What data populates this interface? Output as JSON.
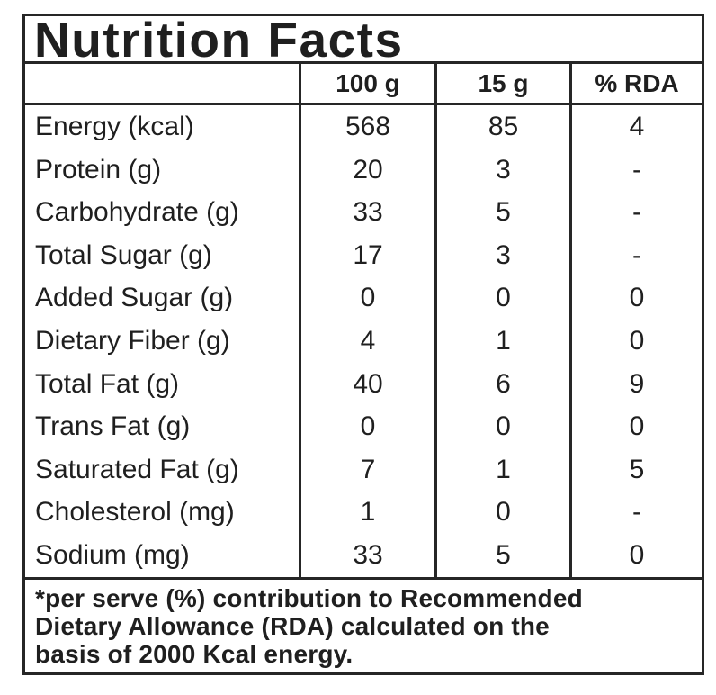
{
  "label": {
    "title": "Nutrition Facts",
    "header": {
      "blank": "",
      "col_100g": "100 g",
      "col_15g": "15 g",
      "col_rda": "% RDA"
    },
    "rows": [
      {
        "label": "Energy (kcal)",
        "per_100g": "568",
        "per_15g": "85",
        "pct_rda": "4"
      },
      {
        "label": "Protein (g)",
        "per_100g": "20",
        "per_15g": "3",
        "pct_rda": "-"
      },
      {
        "label": "Carbohydrate (g)",
        "per_100g": "33",
        "per_15g": "5",
        "pct_rda": "-"
      },
      {
        "label": "Total Sugar (g)",
        "per_100g": "17",
        "per_15g": "3",
        "pct_rda": "-"
      },
      {
        "label": "Added Sugar (g)",
        "per_100g": "0",
        "per_15g": "0",
        "pct_rda": "0"
      },
      {
        "label": "Dietary Fiber (g)",
        "per_100g": "4",
        "per_15g": "1",
        "pct_rda": "0"
      },
      {
        "label": "Total Fat (g)",
        "per_100g": "40",
        "per_15g": "6",
        "pct_rda": "9"
      },
      {
        "label": "Trans Fat (g)",
        "per_100g": "0",
        "per_15g": "0",
        "pct_rda": "0"
      },
      {
        "label": "Saturated Fat (g)",
        "per_100g": "7",
        "per_15g": "1",
        "pct_rda": "5"
      },
      {
        "label": "Cholesterol (mg)",
        "per_100g": "1",
        "per_15g": "0",
        "pct_rda": "-"
      },
      {
        "label": "Sodium (mg)",
        "per_100g": "33",
        "per_15g": "5",
        "pct_rda": "0"
      }
    ],
    "footnote": "*per serve (%) contribution to Recommended\nDietary Allowance (RDA) calculated on the\nbasis of 2000 Kcal energy.",
    "colors": {
      "text": "#1f1f1f",
      "border": "#262626",
      "background": "#ffffff"
    }
  }
}
